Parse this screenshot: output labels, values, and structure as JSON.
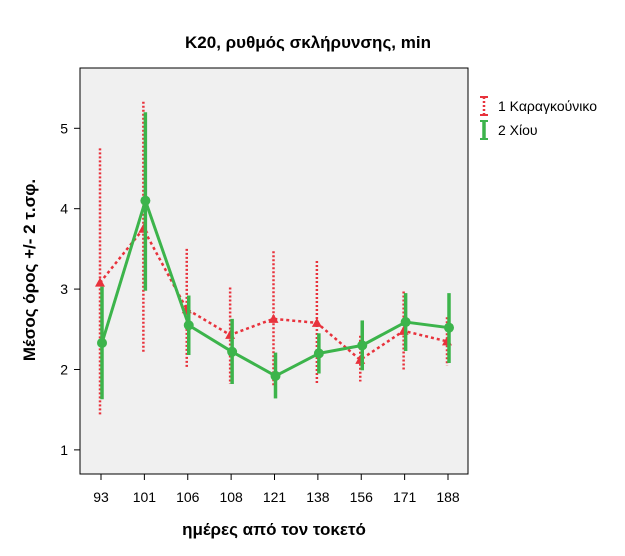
{
  "chart_data": {
    "type": "line",
    "title": "K20, ρυθμός σκλήρυνσης, min",
    "xlabel": "ημέρες από τον τοκετό",
    "ylabel": "Μέσος όρος +/- 2 τ.σφ.",
    "categories": [
      "93",
      "101",
      "106",
      "108",
      "121",
      "138",
      "156",
      "171",
      "188"
    ],
    "ylim": [
      0.7,
      5.75
    ],
    "yticks": [
      1,
      2,
      3,
      4,
      5
    ],
    "grid": false,
    "legend_position": "right",
    "series": [
      {
        "name": "1 Καραγκούνικο",
        "color": "#e8323c",
        "line_style": "dotted",
        "values": [
          3.08,
          3.75,
          2.75,
          2.43,
          2.63,
          2.58,
          2.12,
          2.48,
          2.35
        ],
        "lower": [
          1.43,
          2.2,
          2.03,
          1.82,
          1.8,
          1.82,
          1.85,
          1.98,
          2.05
        ],
        "upper": [
          4.75,
          5.33,
          3.5,
          3.02,
          3.47,
          3.35,
          2.42,
          2.97,
          2.65
        ]
      },
      {
        "name": "2 Χίου",
        "color": "#3cb44b",
        "line_style": "solid",
        "values": [
          2.33,
          4.1,
          2.55,
          2.22,
          1.92,
          2.2,
          2.3,
          2.59,
          2.52
        ],
        "lower": [
          1.63,
          2.98,
          2.18,
          1.82,
          1.64,
          1.95,
          1.99,
          2.23,
          2.08
        ],
        "upper": [
          3.03,
          5.2,
          2.92,
          2.63,
          2.21,
          2.45,
          2.61,
          2.95,
          2.95
        ]
      }
    ]
  }
}
